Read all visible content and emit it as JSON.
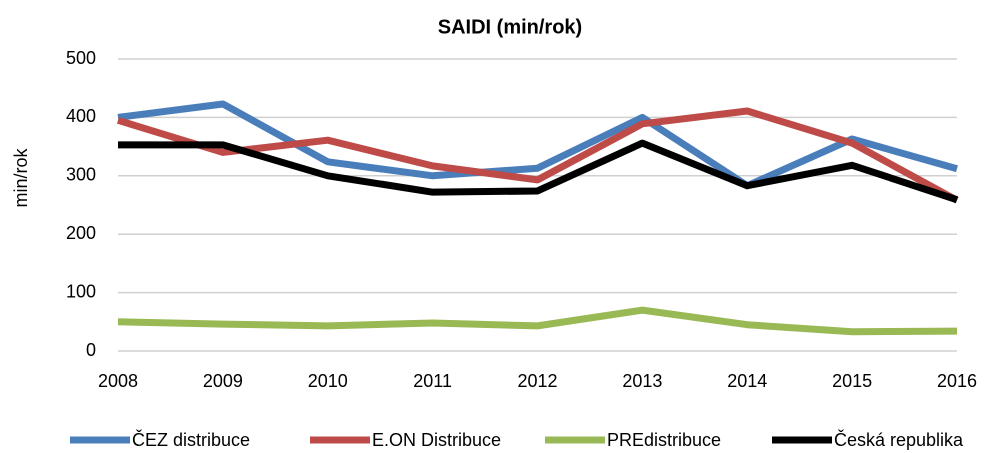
{
  "chart_data": {
    "type": "line",
    "title": "SAIDI (min/rok)",
    "y_label": "min/rok",
    "x": [
      2008,
      2009,
      2010,
      2011,
      2012,
      2013,
      2014,
      2015,
      2016
    ],
    "xlim": [
      2008,
      2016
    ],
    "series": [
      {
        "name": "ČEZ distribuce",
        "color": "#4a7ebb",
        "values": [
          400,
          423,
          324,
          300,
          313,
          400,
          283,
          363,
          312
        ]
      },
      {
        "name": "E.ON Distribuce",
        "color": "#be4b48",
        "values": [
          395,
          340,
          361,
          317,
          293,
          389,
          411,
          356,
          258
        ]
      },
      {
        "name": "PREdistribuce",
        "color": "#98b954",
        "values": [
          50,
          46,
          43,
          48,
          43,
          70,
          45,
          33,
          34
        ]
      },
      {
        "name": "Česká republika",
        "color": "#000000",
        "values": [
          353,
          353,
          300,
          272,
          274,
          356,
          283,
          318,
          259
        ]
      }
    ],
    "ylim": [
      0,
      500
    ],
    "yticks": [
      0,
      100,
      200,
      300,
      400,
      500
    ],
    "grid": true,
    "legend": "bottom"
  }
}
